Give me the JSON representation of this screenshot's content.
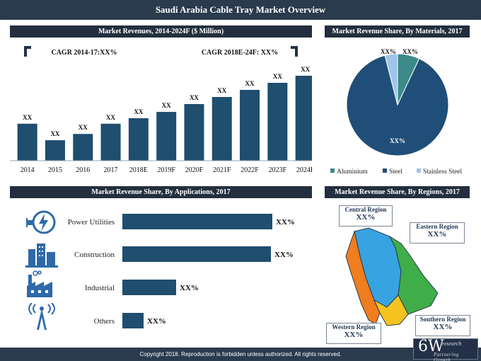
{
  "title": "Saudi Arabia Cable Tray Market Overview",
  "footer": "Copyright 2018. Reproduction is forbidden unless authorized. All rights reserved.",
  "logo": {
    "main": "6W",
    "sup": "research",
    "tag": "Partnering Growth"
  },
  "revenue_panel": {
    "title": "Market Revenues, 2014-2024F ($ Million)",
    "cagr_left": "CAGR 2014-17:XX%",
    "cagr_right": "CAGR 2018E-24F: XX%"
  },
  "materials_panel": {
    "title": "Market Revenue Share, By Materials, 2017"
  },
  "applications_panel": {
    "title": "Market Revenue Share, By Applications, 2017"
  },
  "regions_panel": {
    "title": "Market Revenue Share, By Regions, 2017",
    "regions": [
      {
        "name": "Central Region",
        "value": "XX%"
      },
      {
        "name": "Eastern Region",
        "value": "XX%"
      },
      {
        "name": "Western Region",
        "value": "XX%"
      },
      {
        "name": "Southern Region",
        "value": "XX%"
      }
    ]
  },
  "colors": {
    "bar": "#1f4e6e",
    "steel": "#1f4e78",
    "aluminium": "#3c8a89",
    "stainless": "#9ec5e8",
    "central": "#37a3e0",
    "eastern": "#3fae49",
    "western": "#f07d1e",
    "southern": "#f5c31f"
  },
  "icons": [
    "power-utilities-icon",
    "construction-icon",
    "industrial-icon",
    "others-icon"
  ],
  "chart_data": [
    {
      "type": "bar",
      "categories": [
        "2014",
        "2015",
        "2016",
        "2017",
        "2018E",
        "2019F",
        "2020F",
        "2021F",
        "2022F",
        "2023F",
        "2024F"
      ],
      "values": [
        47,
        26,
        34,
        47,
        54,
        62,
        72,
        81,
        90,
        99,
        108
      ],
      "data_labels": [
        "XX",
        "XX",
        "XX",
        "XX",
        "XX",
        "XX",
        "XX",
        "XX",
        "XX",
        "XX",
        "XX"
      ]
    },
    {
      "type": "pie",
      "labels": [
        "Aluminium",
        "Steel",
        "Stainless Steel"
      ],
      "values": [
        7,
        89,
        4
      ],
      "data_labels": [
        "XX%",
        "XX%",
        "XX%"
      ]
    },
    {
      "type": "bar",
      "orientation": "horizontal",
      "categories": [
        "Power Utilities",
        "Construction",
        "Industrial",
        "Others"
      ],
      "values": [
        212,
        210,
        76,
        30
      ],
      "data_labels": [
        "XX%",
        "XX%",
        "XX%",
        "XX%"
      ]
    }
  ]
}
